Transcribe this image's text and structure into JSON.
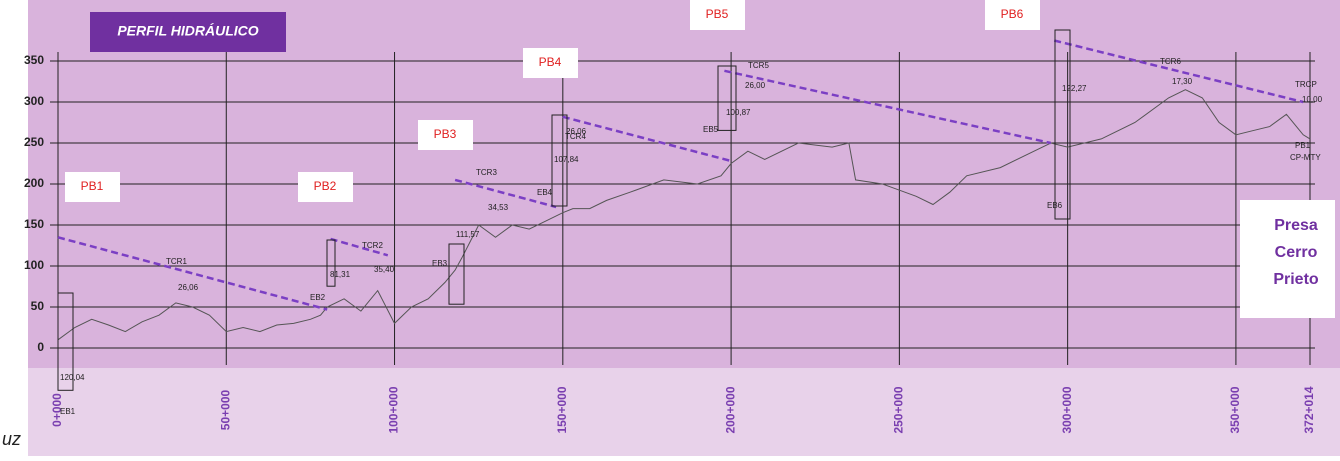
{
  "chart_data": {
    "type": "line",
    "title": "PERFIL HIDRÁULICO",
    "xlim": [
      0,
      372.014
    ],
    "xticks": [
      {
        "value": 0,
        "label": "0+000"
      },
      {
        "value": 50,
        "label": "50+000"
      },
      {
        "value": 100,
        "label": "100+000"
      },
      {
        "value": 150,
        "label": "150+000"
      },
      {
        "value": 200,
        "label": "200+000"
      },
      {
        "value": 250,
        "label": "250+000"
      },
      {
        "value": 300,
        "label": "300+000"
      },
      {
        "value": 350,
        "label": "350+000"
      },
      {
        "value": 372.014,
        "label": "372+014"
      }
    ],
    "ylim": [
      0,
      350
    ],
    "yticks": [
      0,
      50,
      100,
      150,
      200,
      250,
      300,
      350
    ],
    "grid": true,
    "terrain": {
      "color": "#555555",
      "x": [
        0,
        5,
        10,
        15,
        20,
        25,
        30,
        35,
        40,
        45,
        50,
        55,
        60,
        65,
        70,
        75,
        78,
        80,
        85,
        90,
        95,
        100,
        105,
        110,
        115,
        118,
        120,
        125,
        130,
        135,
        140,
        145,
        150,
        153,
        158,
        163,
        170,
        180,
        190,
        197,
        200,
        205,
        210,
        220,
        230,
        235,
        237,
        245,
        255,
        260,
        265,
        270,
        280,
        290,
        295,
        300,
        310,
        320,
        330,
        335,
        340,
        345,
        350,
        355,
        360,
        365,
        370,
        372
      ],
      "values": [
        10,
        25,
        35,
        28,
        20,
        32,
        40,
        55,
        50,
        40,
        20,
        25,
        20,
        28,
        30,
        35,
        40,
        50,
        60,
        45,
        70,
        30,
        50,
        60,
        80,
        95,
        110,
        150,
        135,
        150,
        145,
        155,
        165,
        170,
        170,
        180,
        190,
        205,
        200,
        210,
        225,
        240,
        230,
        250,
        245,
        250,
        205,
        200,
        185,
        175,
        190,
        210,
        220,
        240,
        250,
        245,
        255,
        275,
        305,
        315,
        305,
        275,
        260,
        265,
        270,
        285,
        260,
        255
      ]
    },
    "grade_lines": {
      "color": "#7b3fc4",
      "lines": [
        {
          "x": [
            0,
            80
          ],
          "values": [
            135,
            47
          ]
        },
        {
          "x": [
            81,
            98
          ],
          "values": [
            133,
            113
          ]
        },
        {
          "x": [
            118,
            148
          ],
          "values": [
            205,
            172
          ]
        },
        {
          "x": [
            150,
            200
          ],
          "values": [
            282,
            228
          ]
        },
        {
          "x": [
            198,
            295
          ],
          "values": [
            338,
            250
          ]
        },
        {
          "x": [
            296,
            370
          ],
          "values": [
            375,
            300
          ]
        }
      ]
    },
    "stations": [
      "PB1",
      "PB2",
      "PB3",
      "PB4",
      "PB5",
      "PB6"
    ],
    "labels": [
      "EB1",
      "120,04",
      "TCR1",
      "26,06",
      "EB2",
      "81,31",
      "TCR2",
      "35,40",
      "EB3",
      "111,57",
      "TCR3",
      "34,53",
      "EB4",
      "107,84",
      "TCR4",
      "26,06",
      "EB5",
      "100,87",
      "TCR5",
      "26,00",
      "EB6",
      "122,27",
      "TCR6",
      "17,30",
      "TRCP",
      "10,00",
      "PB1",
      "CP-MTY"
    ],
    "destination": [
      "Presa",
      "Cerro",
      "Prieto"
    ],
    "corner_text": "uz"
  }
}
